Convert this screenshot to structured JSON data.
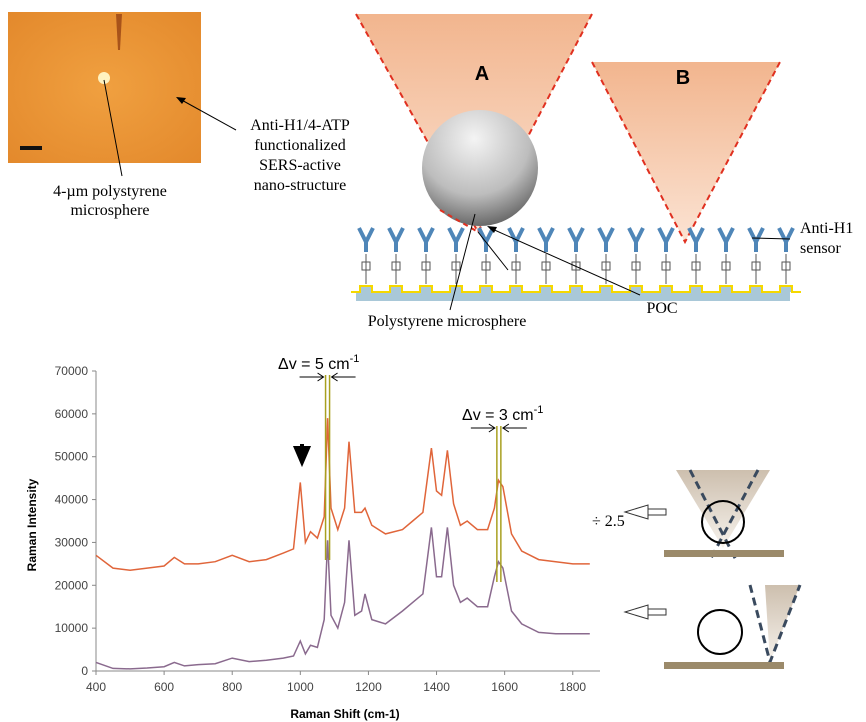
{
  "diagram": {
    "micrograph_labels": {
      "sphere": [
        "4-µm polystyrene",
        "microsphere"
      ],
      "structure": [
        "Anti-H1/4-ATP",
        "functionalized",
        "SERS-active",
        "nano-structure"
      ]
    },
    "cone_labels": [
      "A",
      "B"
    ],
    "sensor_label": [
      "Anti-H1",
      "sensor"
    ],
    "sphere_label": "Polystyrene microsphere",
    "poc_label": "POC"
  },
  "chart_data": {
    "type": "line",
    "xlabel": "Raman Shift (cm-1)",
    "ylabel": "Raman Intensity",
    "x": [
      400,
      450,
      500,
      550,
      600,
      630,
      660,
      700,
      750,
      800,
      850,
      900,
      950,
      980,
      1000,
      1015,
      1030,
      1050,
      1070,
      1080,
      1090,
      1110,
      1130,
      1143,
      1160,
      1180,
      1190,
      1210,
      1250,
      1300,
      1330,
      1360,
      1385,
      1400,
      1415,
      1432,
      1450,
      1470,
      1490,
      1520,
      1550,
      1570,
      1582,
      1595,
      1620,
      1650,
      1700,
      1750,
      1800,
      1850
    ],
    "series": [
      {
        "name": "A",
        "color": "#e0653a",
        "values": [
          27000,
          24000,
          23500,
          24000,
          24500,
          26500,
          25000,
          25000,
          25500,
          27000,
          25500,
          26000,
          27500,
          28500,
          44000,
          30000,
          32500,
          31000,
          36000,
          59000,
          38000,
          33000,
          38000,
          53500,
          37000,
          37000,
          38000,
          34000,
          32000,
          33000,
          35000,
          37000,
          52000,
          42000,
          41000,
          51500,
          39000,
          34000,
          35000,
          33000,
          33000,
          38000,
          44500,
          43000,
          32000,
          28000,
          26000,
          25500,
          25000,
          25000
        ]
      },
      {
        "name": "B",
        "color": "#8a6a8e",
        "values": [
          2000,
          600,
          500,
          700,
          1000,
          2000,
          1200,
          1500,
          1700,
          3000,
          2200,
          2500,
          3000,
          3500,
          7000,
          4000,
          6000,
          5500,
          12000,
          30500,
          13000,
          10000,
          16000,
          30500,
          13000,
          14000,
          18000,
          12000,
          11000,
          14000,
          16000,
          18000,
          33500,
          22000,
          22000,
          33500,
          20000,
          16000,
          17000,
          15000,
          15000,
          22000,
          25500,
          24000,
          14000,
          11000,
          9000,
          8700,
          8700,
          8700
        ]
      }
    ],
    "xlim": [
      400,
      1880
    ],
    "xticks": [
      400,
      600,
      800,
      1000,
      1200,
      1400,
      1600,
      1800
    ],
    "ylim": [
      0,
      70000
    ],
    "yticks": [
      0,
      10000,
      20000,
      30000,
      40000,
      50000,
      60000,
      70000
    ],
    "annotations": [
      {
        "text": "Δv = 5 cm",
        "sup": "-1",
        "x": 1080
      },
      {
        "text": "Δv = 3 cm",
        "sup": "-1",
        "x": 1583
      },
      {
        "text": "÷ 2.5"
      }
    ]
  }
}
